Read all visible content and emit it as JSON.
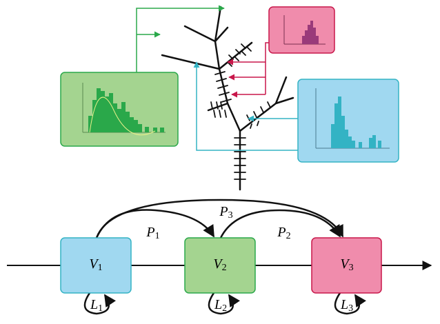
{
  "nodes": [
    {
      "label": "V",
      "subscript": "1"
    },
    {
      "label": "V",
      "subscript": "2"
    },
    {
      "label": "V",
      "subscript": "3"
    }
  ],
  "transitions": [
    {
      "label": "P",
      "subscript": "1"
    },
    {
      "label": "P",
      "subscript": "2"
    },
    {
      "label": "P",
      "subscript": "3"
    }
  ],
  "loops": [
    {
      "label": "L",
      "subscript": "1"
    },
    {
      "label": "L",
      "subscript": "2"
    },
    {
      "label": "L",
      "subscript": "3"
    }
  ]
}
